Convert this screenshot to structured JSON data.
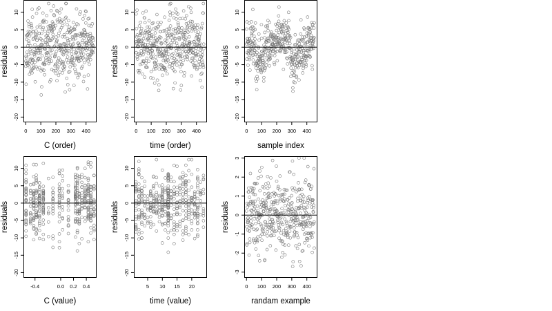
{
  "figure": {
    "point_color": "#777777",
    "axis_color": "#000000",
    "background": "#ffffff"
  },
  "chart_data": [
    {
      "type": "scatter",
      "xlabel": "C (order)",
      "ylabel": "residuals",
      "xlim": [
        -15,
        470
      ],
      "ylim": [
        -21.5,
        13.5
      ],
      "xticks": [
        0,
        100,
        200,
        300,
        400
      ],
      "yticks": [
        10,
        5,
        0,
        -5,
        -10,
        -15,
        -20
      ],
      "hline": 0,
      "pattern": "order",
      "n": 450,
      "seed": 11,
      "noise": {
        "sd": 4.8,
        "min": -20.5,
        "max": 12.5
      }
    },
    {
      "type": "scatter",
      "xlabel": "time (order)",
      "ylabel": "residuals",
      "xlim": [
        -15,
        470
      ],
      "ylim": [
        -21.5,
        13.5
      ],
      "xticks": [
        0,
        100,
        200,
        300,
        400
      ],
      "yticks": [
        10,
        5,
        0,
        -5,
        -10,
        -15,
        -20
      ],
      "hline": 0,
      "pattern": "order",
      "n": 450,
      "seed": 23,
      "noise": {
        "sd": 4.8,
        "min": -20.5,
        "max": 12.5
      }
    },
    {
      "type": "scatter",
      "xlabel": "sample index",
      "ylabel": "residuals",
      "xlim": [
        -15,
        470
      ],
      "ylim": [
        -21.5,
        13.5
      ],
      "xticks": [
        0,
        100,
        200,
        300,
        400
      ],
      "yticks": [
        10,
        5,
        0,
        -5,
        -10,
        -15,
        -20
      ],
      "hline": 0,
      "pattern": "blocks",
      "n": 450,
      "seed": 37,
      "noise": {
        "sd": 3.2,
        "min": -20.5,
        "max": 12.5
      },
      "blocks": [
        {
          "from": 0,
          "to": 60,
          "mean": 1.5
        },
        {
          "from": 60,
          "to": 120,
          "mean": -3.5
        },
        {
          "from": 120,
          "to": 200,
          "mean": 1.0
        },
        {
          "from": 200,
          "to": 290,
          "mean": 2.5
        },
        {
          "from": 290,
          "to": 340,
          "mean": -4.0
        },
        {
          "from": 340,
          "to": 400,
          "mean": -1.5
        },
        {
          "from": 400,
          "to": 455,
          "mean": 1.5
        }
      ]
    },
    {
      "type": "scatter",
      "xlabel": "C (value)",
      "ylabel": "residuals",
      "xlim": [
        -0.58,
        0.56
      ],
      "ylim": [
        -21.5,
        13.5
      ],
      "xticks": [
        -0.4,
        0.0,
        0.2,
        0.4
      ],
      "xticklabels": [
        "-0.4",
        "0.0",
        "0.2",
        "0.4"
      ],
      "yticks": [
        10,
        5,
        0,
        -5,
        -10,
        -15,
        -20
      ],
      "hline": 0,
      "pattern": "columns",
      "n": 450,
      "seed": 53,
      "noise": {
        "sd": 4.8,
        "min": -20.5,
        "max": 12.5
      },
      "columns": [
        -0.54,
        -0.47,
        -0.42,
        -0.38,
        -0.33,
        -0.27,
        -0.19,
        -0.12,
        -0.02,
        0.03,
        0.12,
        0.23,
        0.26,
        0.29,
        0.33,
        0.38,
        0.43,
        0.47,
        0.52
      ],
      "column_weights": [
        3,
        2,
        4,
        3,
        4,
        3,
        1,
        2,
        3,
        1,
        2,
        4,
        4,
        3,
        2,
        3,
        4,
        3,
        3
      ]
    },
    {
      "type": "scatter",
      "xlabel": "time (value)",
      "ylabel": "residuals",
      "xlim": [
        0.3,
        25.2
      ],
      "ylim": [
        -21.5,
        13.5
      ],
      "xticks": [
        5,
        10,
        15,
        20
      ],
      "yticks": [
        10,
        5,
        0,
        -5,
        -10,
        -15,
        -20
      ],
      "hline": 0,
      "pattern": "columns",
      "n": 450,
      "seed": 71,
      "noise": {
        "sd": 4.8,
        "min": -20.5,
        "max": 12.5
      },
      "columns": [
        1,
        2,
        3,
        4,
        5,
        6,
        7,
        8,
        9,
        10,
        11,
        12,
        13,
        14,
        15,
        16,
        17,
        18,
        19,
        20,
        21,
        22,
        23,
        24
      ],
      "column_weights": [
        2,
        3,
        3,
        2,
        2,
        3,
        2,
        2,
        2,
        3,
        2,
        8,
        2,
        2,
        3,
        2,
        2,
        3,
        2,
        2,
        2,
        3,
        2,
        3
      ]
    },
    {
      "type": "scatter",
      "xlabel": "randam example",
      "ylabel": "residuals",
      "xlim": [
        -15,
        470
      ],
      "ylim": [
        -3.3,
        3.1
      ],
      "xticks": [
        0,
        100,
        200,
        300,
        400
      ],
      "yticks": [
        3,
        2,
        1,
        0,
        -1,
        -2,
        -3
      ],
      "hline": 0,
      "pattern": "order",
      "n": 450,
      "seed": 97,
      "noise": {
        "sd": 1.05,
        "min": -3.2,
        "max": 3.0
      }
    }
  ]
}
